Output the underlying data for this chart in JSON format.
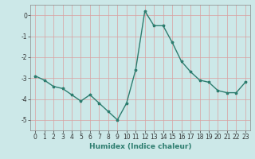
{
  "x": [
    0,
    1,
    2,
    3,
    4,
    5,
    6,
    7,
    8,
    9,
    10,
    11,
    12,
    13,
    14,
    15,
    16,
    17,
    18,
    19,
    20,
    21,
    22,
    23
  ],
  "y": [
    -2.9,
    -3.1,
    -3.4,
    -3.5,
    -3.8,
    -4.1,
    -3.8,
    -4.2,
    -4.6,
    -5.0,
    -4.2,
    -2.6,
    0.2,
    -0.5,
    -0.5,
    -1.3,
    -2.2,
    -2.7,
    -3.1,
    -3.2,
    -3.6,
    -3.7,
    -3.7,
    -3.2
  ],
  "line_color": "#2d7d6f",
  "marker": "*",
  "background_color": "#cce8e8",
  "grid_color": "#d9a0a0",
  "xlabel": "Humidex (Indice chaleur)",
  "ylim": [
    -5.5,
    0.5
  ],
  "xlim": [
    -0.5,
    23.5
  ],
  "yticks": [
    0,
    -1,
    -2,
    -3,
    -4,
    -5
  ],
  "xticks": [
    0,
    1,
    2,
    3,
    4,
    5,
    6,
    7,
    8,
    9,
    10,
    11,
    12,
    13,
    14,
    15,
    16,
    17,
    18,
    19,
    20,
    21,
    22,
    23
  ],
  "label_fontsize": 6.5,
  "tick_fontsize": 5.5,
  "linewidth": 1.0,
  "markersize": 2.5
}
